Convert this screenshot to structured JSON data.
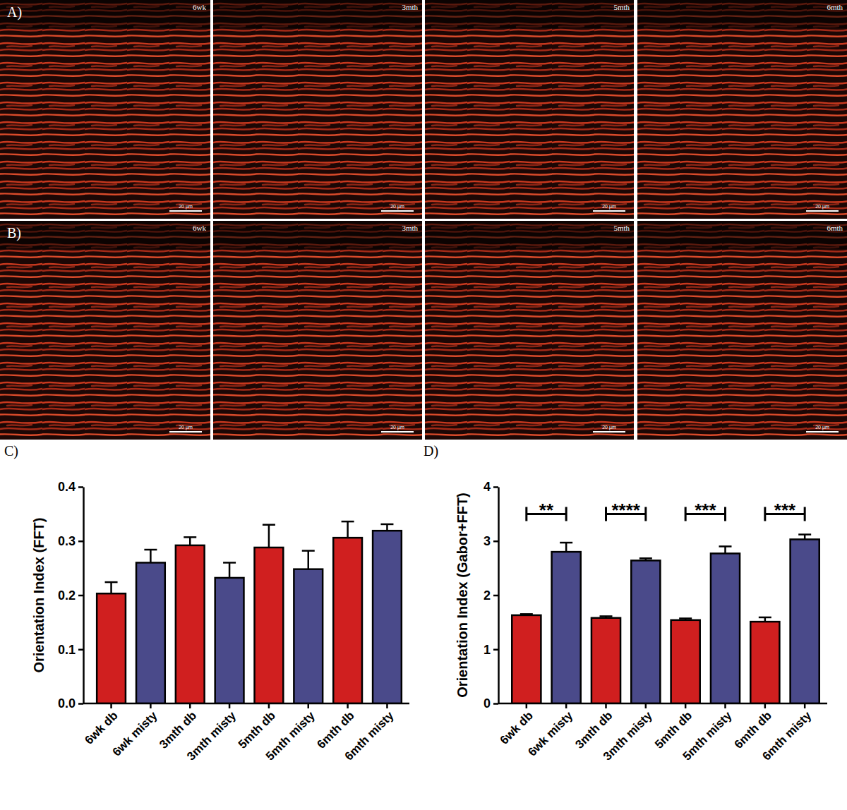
{
  "image_panels": [
    {
      "label": "A)",
      "images": [
        {
          "time": "6wk",
          "scale_bar": "20 µm"
        },
        {
          "time": "3mth",
          "scale_bar": "20 µm"
        },
        {
          "time": "5mth",
          "scale_bar": "20 µm"
        },
        {
          "time": "6mth",
          "scale_bar": "20 µm"
        }
      ]
    },
    {
      "label": "B)",
      "images": [
        {
          "time": "6wk",
          "scale_bar": "20 µm"
        },
        {
          "time": "3mth",
          "scale_bar": "20 µm"
        },
        {
          "time": "5mth",
          "scale_bar": "20 µm"
        },
        {
          "time": "6mth",
          "scale_bar": "20 µm"
        }
      ]
    }
  ],
  "chart_data": [
    {
      "type": "bar",
      "title": "C)",
      "y_label": "Orientation Index (FFT)",
      "categories": [
        "6wk db",
        "6wk misty",
        "3mth db",
        "3mth misty",
        "5mth db",
        "5mth misty",
        "6mth db",
        "6mth misty"
      ],
      "values": [
        0.203,
        0.26,
        0.292,
        0.232,
        0.288,
        0.248,
        0.306,
        0.319
      ],
      "errors": [
        0.021,
        0.024,
        0.015,
        0.028,
        0.042,
        0.034,
        0.03,
        0.012
      ],
      "colors": [
        "#d01f1f",
        "#4a4a8a",
        "#d01f1f",
        "#4a4a8a",
        "#d01f1f",
        "#4a4a8a",
        "#d01f1f",
        "#4a4a8a"
      ],
      "ylim": [
        0,
        0.4
      ],
      "yticks": [
        {
          "value": 0,
          "label": "0.0"
        },
        0.1,
        0.2,
        0.3,
        0.4
      ]
    },
    {
      "type": "bar",
      "title": "D)",
      "y_label": "Orientation Index (Gabor+FFT)",
      "categories": [
        "6wk db",
        "6wk misty",
        "3mth db",
        "3mth misty",
        "5mth db",
        "5mth misty",
        "6mth db",
        "6mth misty"
      ],
      "values": [
        1.63,
        2.8,
        1.58,
        2.64,
        1.54,
        2.77,
        1.51,
        3.03
      ],
      "errors": [
        0.02,
        0.17,
        0.03,
        0.04,
        0.03,
        0.13,
        0.08,
        0.09
      ],
      "colors": [
        "#d01f1f",
        "#4a4a8a",
        "#d01f1f",
        "#4a4a8a",
        "#d01f1f",
        "#4a4a8a",
        "#d01f1f",
        "#4a4a8a"
      ],
      "ylim": [
        0,
        4
      ],
      "yticks": [
        0,
        1,
        2,
        3,
        4
      ],
      "annotations": [
        {
          "between": [
            "6wk db",
            "6wk misty"
          ],
          "label": "**",
          "y": 3.5
        },
        {
          "between": [
            "3mth db",
            "3mth misty"
          ],
          "label": "****",
          "y": 3.5
        },
        {
          "between": [
            "5mth db",
            "5mth misty"
          ],
          "label": "***",
          "y": 3.5
        },
        {
          "between": [
            "6mth db",
            "6mth misty"
          ],
          "label": "***",
          "y": 3.5
        }
      ]
    }
  ]
}
